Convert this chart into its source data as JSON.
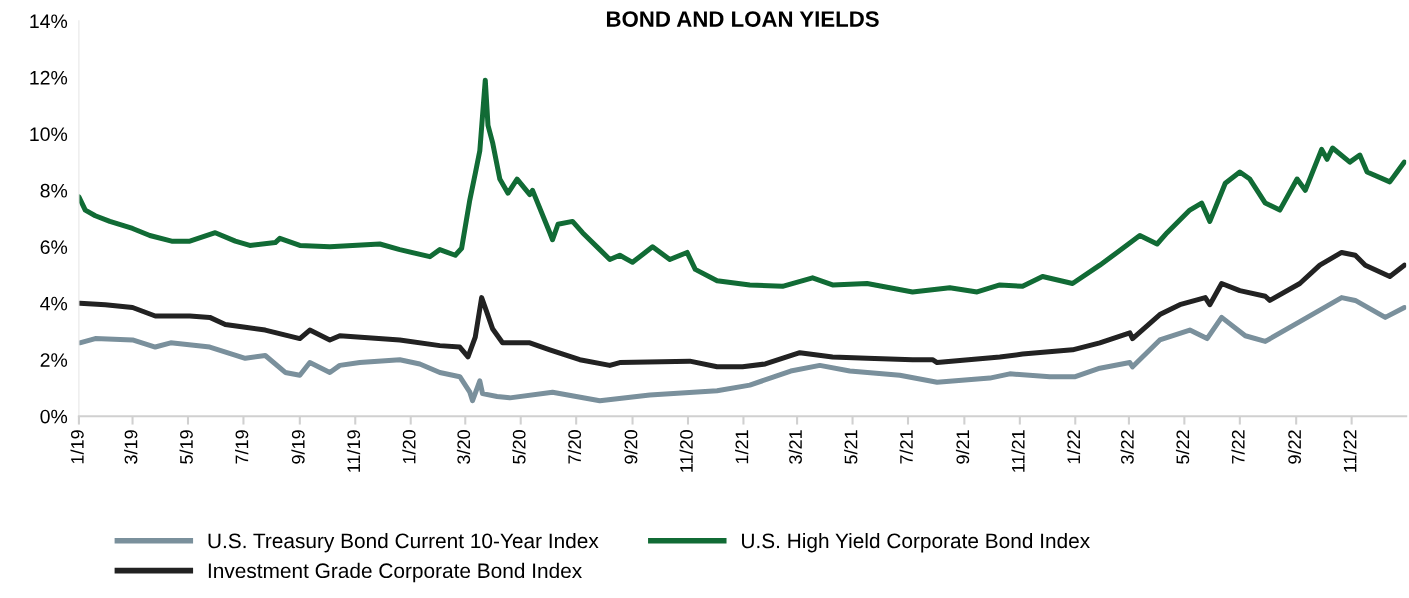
{
  "chart_data": {
    "type": "line",
    "title": "BOND AND LOAN YIELDS",
    "xlim": [
      "2019-01-01",
      "2022-12-31"
    ],
    "xticks": [
      {
        "value": "2019-01-01",
        "label": "1/19"
      },
      {
        "value": "2019-03-01",
        "label": "3/19"
      },
      {
        "value": "2019-05-01",
        "label": "5/19"
      },
      {
        "value": "2019-07-01",
        "label": "7/19"
      },
      {
        "value": "2019-09-01",
        "label": "9/19"
      },
      {
        "value": "2019-11-01",
        "label": "11/19"
      },
      {
        "value": "2020-01-01",
        "label": "1/20"
      },
      {
        "value": "2020-03-01",
        "label": "3/20"
      },
      {
        "value": "2020-05-01",
        "label": "5/20"
      },
      {
        "value": "2020-07-01",
        "label": "7/20"
      },
      {
        "value": "2020-09-01",
        "label": "9/20"
      },
      {
        "value": "2020-11-01",
        "label": "11/20"
      },
      {
        "value": "2021-01-01",
        "label": "1/21"
      },
      {
        "value": "2021-03-01",
        "label": "3/21"
      },
      {
        "value": "2021-05-01",
        "label": "5/21"
      },
      {
        "value": "2021-07-01",
        "label": "7/21"
      },
      {
        "value": "2021-09-01",
        "label": "9/21"
      },
      {
        "value": "2021-11-01",
        "label": "11/21"
      },
      {
        "value": "2022-01-01",
        "label": "1/22"
      },
      {
        "value": "2022-03-01",
        "label": "3/22"
      },
      {
        "value": "2022-05-01",
        "label": "5/22"
      },
      {
        "value": "2022-07-01",
        "label": "7/22"
      },
      {
        "value": "2022-09-01",
        "label": "9/22"
      },
      {
        "value": "2022-11-01",
        "label": "11/22"
      }
    ],
    "ylim": [
      0,
      14
    ],
    "yticks": [
      {
        "value": 0,
        "label": "0%"
      },
      {
        "value": 2,
        "label": "2%"
      },
      {
        "value": 4,
        "label": "4%"
      },
      {
        "value": 6,
        "label": "6%"
      },
      {
        "value": 8,
        "label": "8%"
      },
      {
        "value": 10,
        "label": "10%"
      },
      {
        "value": 12,
        "label": "12%"
      },
      {
        "value": 14,
        "label": "14%"
      }
    ],
    "grid": false,
    "legend": "bottom",
    "marker": "none",
    "line_style": "solid",
    "series": [
      {
        "name": "U.S. Treasury Bond Current 10-Year Index",
        "color": "#7a909c",
        "x": [
          "2019-01-02",
          "2019-01-19",
          "2019-03-01",
          "2019-03-26",
          "2019-04-12",
          "2019-05-25",
          "2019-07-03",
          "2019-07-25",
          "2019-08-16",
          "2019-09-01",
          "2019-09-12",
          "2019-10-04",
          "2019-10-15",
          "2019-11-06",
          "2019-12-20",
          "2020-01-11",
          "2020-02-02",
          "2020-02-24",
          "2020-03-06",
          "2020-03-09",
          "2020-03-17",
          "2020-03-20",
          "2020-04-05",
          "2020-04-19",
          "2020-06-05",
          "2020-07-27",
          "2020-09-20",
          "2020-12-03",
          "2021-01-08",
          "2021-02-22",
          "2021-03-26",
          "2021-04-28",
          "2021-06-22",
          "2021-08-02",
          "2021-09-29",
          "2021-10-21",
          "2021-12-04",
          "2022-01-01",
          "2022-01-28",
          "2022-03-02",
          "2022-03-05",
          "2022-04-04",
          "2022-05-07",
          "2022-05-26",
          "2022-06-11",
          "2022-07-07",
          "2022-07-29",
          "2022-09-05",
          "2022-10-21",
          "2022-11-05",
          "2022-12-08",
          "2022-12-29"
        ],
        "values": [
          2.6,
          2.75,
          2.7,
          2.45,
          2.6,
          2.45,
          2.05,
          2.15,
          1.55,
          1.45,
          1.9,
          1.55,
          1.8,
          1.9,
          2.0,
          1.85,
          1.55,
          1.4,
          0.85,
          0.55,
          1.25,
          0.8,
          0.7,
          0.65,
          0.85,
          0.55,
          0.75,
          0.9,
          1.1,
          1.6,
          1.8,
          1.6,
          1.45,
          1.2,
          1.35,
          1.5,
          1.4,
          1.4,
          1.7,
          1.9,
          1.75,
          2.7,
          3.05,
          2.75,
          3.5,
          2.85,
          2.65,
          3.35,
          4.2,
          4.1,
          3.5,
          3.85
        ]
      },
      {
        "name": "Investment Grade Corporate Bond Index",
        "color": "#222222",
        "x": [
          "2019-01-02",
          "2019-01-30",
          "2019-03-01",
          "2019-03-26",
          "2019-05-03",
          "2019-05-25",
          "2019-06-11",
          "2019-07-03",
          "2019-07-25",
          "2019-09-01",
          "2019-09-12",
          "2019-10-04",
          "2019-10-15",
          "2019-12-20",
          "2020-02-02",
          "2020-02-24",
          "2020-03-04",
          "2020-03-12",
          "2020-03-19",
          "2020-03-24",
          "2020-03-31",
          "2020-04-11",
          "2020-05-11",
          "2020-06-02",
          "2020-07-05",
          "2020-08-07",
          "2020-08-18",
          "2020-11-03",
          "2020-12-03",
          "2020-12-31",
          "2021-01-25",
          "2021-03-04",
          "2021-04-09",
          "2021-05-17",
          "2021-07-06",
          "2021-07-28",
          "2021-08-02",
          "2021-10-10",
          "2021-11-04",
          "2021-12-29",
          "2022-01-28",
          "2022-03-02",
          "2022-03-05",
          "2022-04-04",
          "2022-04-26",
          "2022-05-24",
          "2022-05-29",
          "2022-06-11",
          "2022-07-01",
          "2022-07-29",
          "2022-08-03",
          "2022-09-05",
          "2022-09-27",
          "2022-10-21",
          "2022-11-05",
          "2022-11-16",
          "2022-12-13",
          "2022-12-29"
        ],
        "values": [
          4.0,
          3.95,
          3.85,
          3.55,
          3.55,
          3.5,
          3.25,
          3.15,
          3.05,
          2.75,
          3.05,
          2.7,
          2.85,
          2.7,
          2.5,
          2.45,
          2.1,
          2.8,
          4.2,
          3.75,
          3.1,
          2.6,
          2.6,
          2.35,
          2.0,
          1.8,
          1.9,
          1.95,
          1.75,
          1.75,
          1.85,
          2.25,
          2.1,
          2.05,
          2.0,
          2.0,
          1.9,
          2.1,
          2.2,
          2.35,
          2.6,
          2.95,
          2.75,
          3.6,
          3.95,
          4.2,
          3.95,
          4.7,
          4.45,
          4.25,
          4.1,
          4.7,
          5.35,
          5.8,
          5.7,
          5.35,
          4.95,
          5.35
        ]
      },
      {
        "name": "U.S. High Yield Corporate Bond Index",
        "color": "#116b35",
        "x": [
          "2019-01-01",
          "2019-01-08",
          "2019-01-19",
          "2019-02-04",
          "2019-03-01",
          "2019-03-20",
          "2019-04-13",
          "2019-05-03",
          "2019-05-31",
          "2019-06-22",
          "2019-07-08",
          "2019-08-05",
          "2019-08-10",
          "2019-09-01",
          "2019-10-04",
          "2019-11-28",
          "2019-12-20",
          "2020-01-22",
          "2020-02-02",
          "2020-02-19",
          "2020-02-26",
          "2020-03-06",
          "2020-03-12",
          "2020-03-17",
          "2020-03-23",
          "2020-03-26",
          "2020-03-31",
          "2020-04-08",
          "2020-04-17",
          "2020-04-27",
          "2020-05-11",
          "2020-05-14",
          "2020-06-02",
          "2020-06-05",
          "2020-06-11",
          "2020-06-27",
          "2020-07-08",
          "2020-07-27",
          "2020-08-07",
          "2020-08-18",
          "2020-09-01",
          "2020-09-23",
          "2020-10-12",
          "2020-10-31",
          "2020-11-09",
          "2020-12-03",
          "2021-01-08",
          "2021-02-13",
          "2021-03-18",
          "2021-04-09",
          "2021-05-17",
          "2021-07-06",
          "2021-08-16",
          "2021-09-15",
          "2021-10-10",
          "2021-11-04",
          "2021-11-26",
          "2021-12-29",
          "2022-01-28",
          "2022-02-16",
          "2022-03-13",
          "2022-04-01",
          "2022-04-12",
          "2022-05-07",
          "2022-05-20",
          "2022-05-29",
          "2022-06-15",
          "2022-07-01",
          "2022-07-12",
          "2022-07-29",
          "2022-08-14",
          "2022-09-02",
          "2022-09-11",
          "2022-09-29",
          "2022-10-05",
          "2022-10-11",
          "2022-10-30",
          "2022-11-10",
          "2022-11-18",
          "2022-12-13",
          "2022-12-21",
          "2022-12-29"
        ],
        "values": [
          7.77,
          7.3,
          7.1,
          6.9,
          6.65,
          6.4,
          6.2,
          6.2,
          6.5,
          6.2,
          6.05,
          6.15,
          6.3,
          6.05,
          6.0,
          6.1,
          5.9,
          5.65,
          5.9,
          5.7,
          5.95,
          7.66,
          8.6,
          9.4,
          11.9,
          10.3,
          9.7,
          8.4,
          7.9,
          8.4,
          7.85,
          8.0,
          6.5,
          6.25,
          6.8,
          6.9,
          6.5,
          5.9,
          5.55,
          5.7,
          5.45,
          6.0,
          5.55,
          5.8,
          5.2,
          4.8,
          4.65,
          4.6,
          4.9,
          4.65,
          4.7,
          4.4,
          4.55,
          4.4,
          4.65,
          4.6,
          4.95,
          4.7,
          5.35,
          5.8,
          6.4,
          6.1,
          6.5,
          7.3,
          7.55,
          6.9,
          8.25,
          8.65,
          8.4,
          7.55,
          7.3,
          8.4,
          8.0,
          9.45,
          9.1,
          9.5,
          9.0,
          9.25,
          8.65,
          8.3,
          8.65,
          9.0
        ]
      }
    ]
  }
}
